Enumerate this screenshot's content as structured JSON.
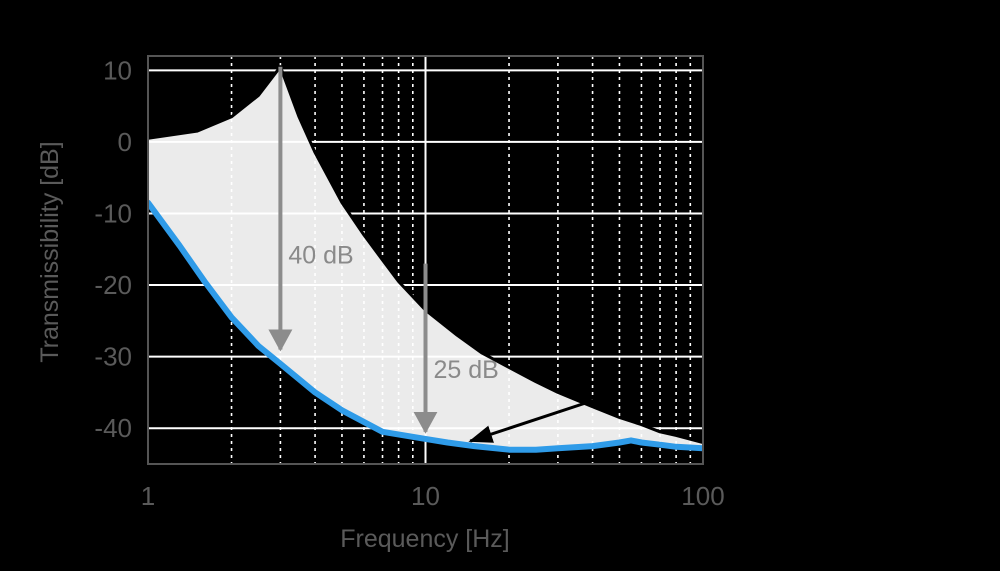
{
  "chart_data": {
    "type": "line",
    "x_scale": "log",
    "xlim": [
      1,
      100
    ],
    "ylim": [
      -45,
      12
    ],
    "xlabel": "Frequency [Hz]",
    "ylabel": "Transmissibility [dB]",
    "x_ticks": [
      {
        "value": 1,
        "label": "1"
      },
      {
        "value": 10,
        "label": "10"
      },
      {
        "value": 100,
        "label": "100"
      }
    ],
    "y_ticks": [
      {
        "value": 10,
        "label": "10"
      },
      {
        "value": 0,
        "label": "0"
      },
      {
        "value": -10,
        "label": "-10"
      },
      {
        "value": -20,
        "label": "-20"
      },
      {
        "value": -30,
        "label": "-30"
      },
      {
        "value": -40,
        "label": "-40"
      }
    ],
    "grid": true,
    "series": [
      {
        "role": "passive-upper-bound",
        "color": "#000000",
        "x": [
          1,
          1.5,
          2,
          2.5,
          3,
          3.5,
          4,
          5,
          6,
          7,
          8,
          10,
          13,
          16,
          20,
          25,
          30,
          40,
          50,
          60,
          70,
          80,
          100
        ],
        "y": [
          0.5,
          1.5,
          3.5,
          6.5,
          10.5,
          3.5,
          -1.5,
          -8.5,
          -13.0,
          -16.5,
          -19.5,
          -23.5,
          -27.0,
          -29.5,
          -31.5,
          -33.5,
          -35.0,
          -37.0,
          -38.5,
          -39.5,
          -40.5,
          -41.0,
          -42.0
        ]
      },
      {
        "role": "active-response",
        "color": "#2f9be8",
        "x": [
          1,
          1.3,
          1.6,
          2,
          2.5,
          3,
          4,
          5,
          7,
          10,
          12,
          15,
          20,
          25,
          30,
          40,
          50,
          55,
          60,
          70,
          80,
          100
        ],
        "y": [
          -8.5,
          -14.5,
          -19.5,
          -24.5,
          -28.5,
          -31.0,
          -35.0,
          -37.5,
          -40.5,
          -41.5,
          -42.0,
          -42.5,
          -43.0,
          -43.0,
          -42.8,
          -42.5,
          -42.0,
          -41.7,
          -42.0,
          -42.3,
          -42.6,
          -42.8
        ]
      }
    ],
    "annotations": [
      {
        "text": "40 dB",
        "from": [
          3,
          10.5
        ],
        "to": [
          3,
          -29
        ]
      },
      {
        "text": "25 dB",
        "from": [
          10,
          -17
        ],
        "to": [
          10,
          -40.5
        ]
      },
      {
        "text": "",
        "from": [
          45,
          -35.5
        ],
        "to": [
          14.5,
          -41.8
        ]
      }
    ],
    "fill_between_series": true,
    "fill_color": "#ebebeb",
    "text_color": "#5a5a5a",
    "annotation_color": "#8c8c8c"
  }
}
